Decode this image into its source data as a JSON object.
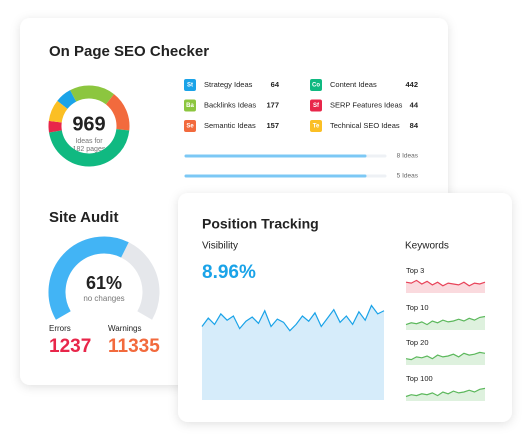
{
  "seo": {
    "title": "On Page SEO Checker",
    "total": 969,
    "total_caption": [
      "Ideas for",
      "182 pages"
    ],
    "ideas": [
      {
        "badge": "St",
        "name": "Strategy Ideas",
        "value": 64,
        "color": "#1aa3e8"
      },
      {
        "badge": "Ba",
        "name": "Backlinks Ideas",
        "value": 177,
        "color": "#8cc63f"
      },
      {
        "badge": "Se",
        "name": "Semantic Ideas",
        "value": 157,
        "color": "#f26a3d"
      },
      {
        "badge": "Co",
        "name": "Content Ideas",
        "value": 442,
        "color": "#10b981"
      },
      {
        "badge": "Sf",
        "name": "SERP Features Ideas",
        "value": 44,
        "color": "#e8264a"
      },
      {
        "badge": "Te",
        "name": "Technical SEO Ideas",
        "value": 84,
        "color": "#fbbf24"
      }
    ],
    "progress": [
      "8 Ideas",
      "5 Ideas"
    ]
  },
  "audit": {
    "title": "Site Audit",
    "score": 61,
    "score_label": "61%",
    "score_caption": "no changes",
    "errors_label": "Errors",
    "errors": 1237,
    "warnings_label": "Warnings",
    "warnings": 11335
  },
  "tracking": {
    "title": "Position Tracking",
    "visibility_label": "Visibility",
    "visibility": "8.96%",
    "ylim": [
      0,
      100
    ],
    "visibility_series": [
      70,
      78,
      72,
      82,
      76,
      80,
      68,
      75,
      79,
      73,
      85,
      70,
      77,
      74,
      66,
      72,
      80,
      75,
      83,
      70,
      78,
      86,
      74,
      80,
      72,
      84,
      76,
      90,
      82,
      85
    ],
    "keywords_label": "Keywords",
    "keywords": [
      {
        "name": "Top 3",
        "color": "#e8445a",
        "values": [
          60,
          55,
          70,
          50,
          65,
          45,
          60,
          40,
          55,
          50,
          45,
          60,
          40,
          55,
          50,
          60
        ]
      },
      {
        "name": "Top 10",
        "color": "#5cb85c",
        "values": [
          30,
          40,
          35,
          45,
          30,
          50,
          40,
          55,
          45,
          50,
          60,
          50,
          65,
          55,
          70,
          75
        ]
      },
      {
        "name": "Top 20",
        "color": "#5cb85c",
        "values": [
          35,
          30,
          45,
          40,
          50,
          35,
          55,
          45,
          50,
          60,
          45,
          65,
          55,
          60,
          70,
          65
        ]
      },
      {
        "name": "Top 100",
        "color": "#5cb85c",
        "values": [
          25,
          35,
          30,
          40,
          35,
          45,
          30,
          50,
          40,
          55,
          45,
          50,
          60,
          50,
          65,
          70
        ]
      }
    ]
  }
}
